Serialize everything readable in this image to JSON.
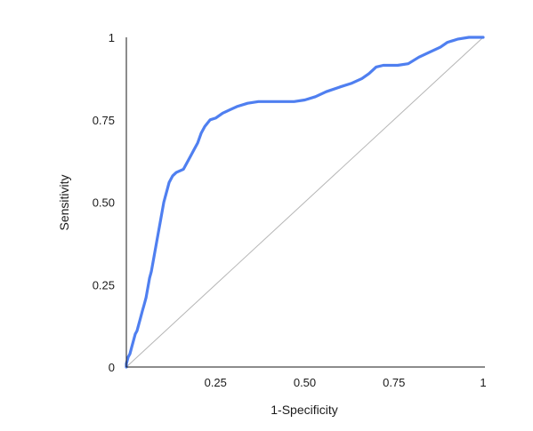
{
  "chart_data": {
    "type": "line",
    "title": "",
    "xlabel": "1-Specificity",
    "ylabel": "Sensitivity",
    "xlim": [
      0,
      1
    ],
    "ylim": [
      0,
      1
    ],
    "x_ticks": [
      {
        "value": 0.25,
        "label": "0.25"
      },
      {
        "value": 0.5,
        "label": "0.50"
      },
      {
        "value": 0.75,
        "label": "0.75"
      },
      {
        "value": 1,
        "label": "1"
      }
    ],
    "y_ticks": [
      {
        "value": 0,
        "label": "0"
      },
      {
        "value": 0.25,
        "label": "0.25"
      },
      {
        "value": 0.5,
        "label": "0.50"
      },
      {
        "value": 0.75,
        "label": "0.75"
      },
      {
        "value": 1,
        "label": "1"
      }
    ],
    "grid": false,
    "legend": "none",
    "colors": {
      "roc_curve": "#4f7ff0",
      "reference_line": "#b5b5b5",
      "axis": "#1a1a1a"
    },
    "series": [
      {
        "kind": "roc-curve",
        "points": [
          [
            0,
            0
          ],
          [
            0,
            0.01
          ],
          [
            0.005,
            0.03
          ],
          [
            0.01,
            0.04
          ],
          [
            0.015,
            0.06
          ],
          [
            0.02,
            0.08
          ],
          [
            0.025,
            0.1
          ],
          [
            0.03,
            0.11
          ],
          [
            0.035,
            0.13
          ],
          [
            0.04,
            0.15
          ],
          [
            0.045,
            0.17
          ],
          [
            0.05,
            0.19
          ],
          [
            0.055,
            0.21
          ],
          [
            0.06,
            0.24
          ],
          [
            0.065,
            0.27
          ],
          [
            0.07,
            0.29
          ],
          [
            0.075,
            0.32
          ],
          [
            0.08,
            0.35
          ],
          [
            0.085,
            0.38
          ],
          [
            0.09,
            0.41
          ],
          [
            0.095,
            0.44
          ],
          [
            0.1,
            0.47
          ],
          [
            0.105,
            0.5
          ],
          [
            0.11,
            0.52
          ],
          [
            0.115,
            0.54
          ],
          [
            0.12,
            0.56
          ],
          [
            0.13,
            0.58
          ],
          [
            0.14,
            0.59
          ],
          [
            0.16,
            0.6
          ],
          [
            0.17,
            0.62
          ],
          [
            0.18,
            0.64
          ],
          [
            0.19,
            0.66
          ],
          [
            0.2,
            0.68
          ],
          [
            0.21,
            0.71
          ],
          [
            0.22,
            0.73
          ],
          [
            0.235,
            0.75
          ],
          [
            0.25,
            0.755
          ],
          [
            0.27,
            0.77
          ],
          [
            0.29,
            0.78
          ],
          [
            0.31,
            0.79
          ],
          [
            0.34,
            0.8
          ],
          [
            0.37,
            0.805
          ],
          [
            0.42,
            0.805
          ],
          [
            0.47,
            0.805
          ],
          [
            0.5,
            0.81
          ],
          [
            0.53,
            0.82
          ],
          [
            0.56,
            0.835
          ],
          [
            0.6,
            0.85
          ],
          [
            0.63,
            0.86
          ],
          [
            0.66,
            0.875
          ],
          [
            0.68,
            0.89
          ],
          [
            0.7,
            0.91
          ],
          [
            0.72,
            0.915
          ],
          [
            0.76,
            0.915
          ],
          [
            0.79,
            0.92
          ],
          [
            0.82,
            0.94
          ],
          [
            0.85,
            0.955
          ],
          [
            0.88,
            0.97
          ],
          [
            0.9,
            0.985
          ],
          [
            0.93,
            0.995
          ],
          [
            0.96,
            1
          ],
          [
            1,
            1
          ]
        ]
      },
      {
        "kind": "reference-diagonal",
        "points": [
          [
            0,
            0
          ],
          [
            1,
            1
          ]
        ]
      }
    ]
  }
}
